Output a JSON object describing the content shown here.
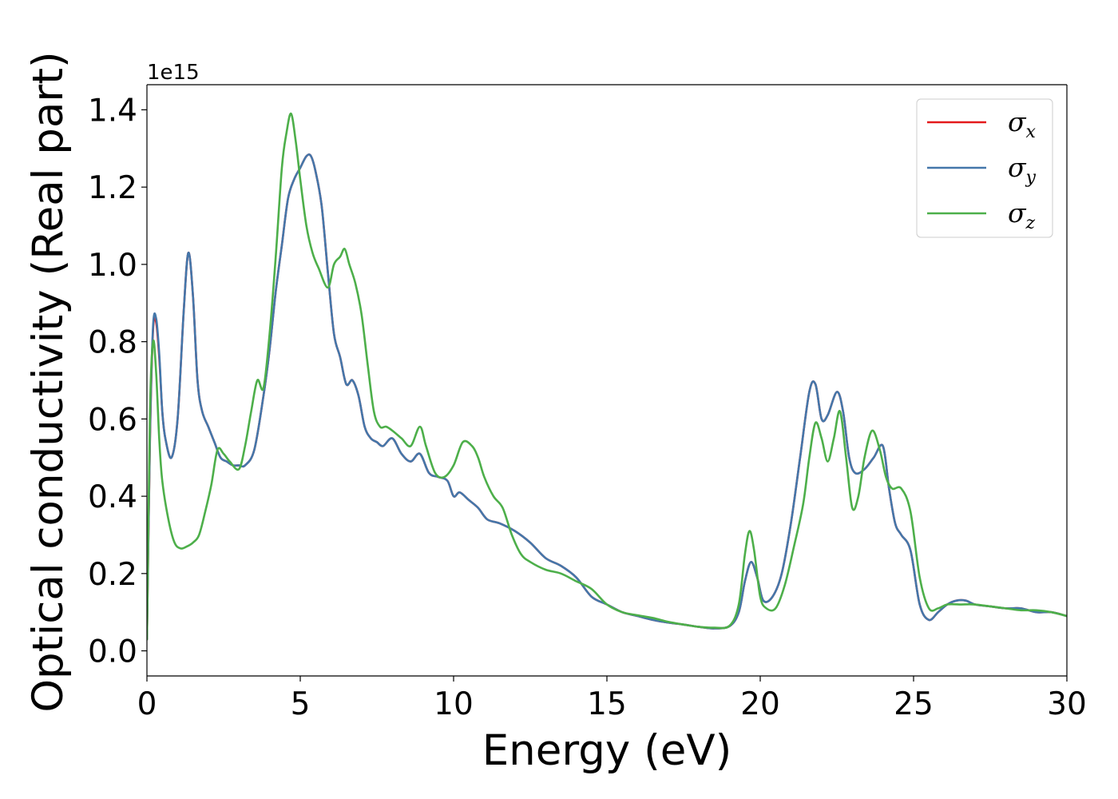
{
  "chart_data": {
    "type": "line",
    "title": "",
    "xlabel": "Energy (eV)",
    "ylabel": "Optical conductivity (Real part)",
    "y_offset_text": "1e15",
    "xlim": [
      0,
      30
    ],
    "ylim": [
      -0.065,
      1.465
    ],
    "xticks": [
      0,
      5,
      10,
      15,
      20,
      25,
      30
    ],
    "xtick_labels": [
      "0",
      "5",
      "10",
      "15",
      "20",
      "25",
      "30"
    ],
    "yticks": [
      0.0,
      0.2,
      0.4,
      0.6,
      0.8,
      1.0,
      1.2,
      1.4
    ],
    "ytick_labels": [
      "0.0",
      "0.2",
      "0.4",
      "0.6",
      "0.8",
      "1.0",
      "1.2",
      "1.4"
    ],
    "grid": false,
    "legend_position": "top-right",
    "series": [
      {
        "name": "σx",
        "symbol": "σ",
        "subscript": "x",
        "color": "#e41a1c",
        "x": [
          0,
          0.1,
          0.2,
          0.3,
          0.4,
          0.5,
          0.6,
          0.8,
          1.0,
          1.2,
          1.35,
          1.5,
          1.65,
          1.8,
          2.0,
          2.2,
          2.4,
          2.6,
          2.8,
          3.0,
          3.2,
          3.5,
          3.8,
          4.0,
          4.2,
          4.4,
          4.6,
          4.8,
          5.0,
          5.2,
          5.35,
          5.5,
          5.7,
          5.9,
          6.1,
          6.3,
          6.5,
          6.7,
          6.9,
          7.1,
          7.3,
          7.5,
          7.7,
          8.0,
          8.3,
          8.6,
          8.9,
          9.2,
          9.5,
          9.8,
          10.0,
          10.2,
          10.5,
          10.8,
          11.1,
          11.5,
          12.0,
          12.5,
          13.0,
          13.5,
          14.0,
          14.5,
          15.0,
          15.5,
          16.0,
          16.5,
          17.0,
          17.5,
          18.0,
          18.5,
          19.0,
          19.3,
          19.5,
          19.7,
          19.9,
          20.1,
          20.4,
          20.7,
          21.0,
          21.3,
          21.6,
          21.8,
          22.0,
          22.2,
          22.5,
          22.7,
          22.9,
          23.1,
          23.4,
          23.7,
          24.0,
          24.2,
          24.4,
          24.6,
          24.9,
          25.2,
          25.5,
          25.8,
          26.1,
          26.4,
          26.7,
          27.0,
          27.5,
          28.0,
          28.5,
          29.0,
          29.5,
          30.0
        ],
        "y": [
          0.03,
          0.55,
          0.83,
          0.85,
          0.76,
          0.62,
          0.55,
          0.5,
          0.6,
          0.88,
          1.03,
          0.92,
          0.7,
          0.62,
          0.58,
          0.54,
          0.5,
          0.49,
          0.48,
          0.48,
          0.48,
          0.52,
          0.66,
          0.78,
          0.93,
          1.05,
          1.17,
          1.22,
          1.25,
          1.28,
          1.28,
          1.24,
          1.15,
          0.98,
          0.82,
          0.76,
          0.69,
          0.7,
          0.66,
          0.58,
          0.55,
          0.54,
          0.53,
          0.55,
          0.51,
          0.49,
          0.51,
          0.46,
          0.45,
          0.44,
          0.4,
          0.41,
          0.39,
          0.37,
          0.34,
          0.33,
          0.31,
          0.28,
          0.24,
          0.22,
          0.19,
          0.14,
          0.12,
          0.1,
          0.09,
          0.08,
          0.073,
          0.068,
          0.062,
          0.058,
          0.064,
          0.1,
          0.18,
          0.23,
          0.19,
          0.13,
          0.14,
          0.2,
          0.33,
          0.5,
          0.67,
          0.69,
          0.6,
          0.61,
          0.67,
          0.62,
          0.5,
          0.46,
          0.47,
          0.5,
          0.53,
          0.42,
          0.33,
          0.3,
          0.26,
          0.12,
          0.08,
          0.1,
          0.12,
          0.13,
          0.13,
          0.12,
          0.115,
          0.11,
          0.11,
          0.1,
          0.1,
          0.09
        ]
      },
      {
        "name": "σy",
        "symbol": "σ",
        "subscript": "y",
        "color": "#4477aa",
        "x": [
          0,
          0.1,
          0.2,
          0.3,
          0.4,
          0.5,
          0.6,
          0.8,
          1.0,
          1.2,
          1.35,
          1.5,
          1.65,
          1.8,
          2.0,
          2.2,
          2.4,
          2.6,
          2.8,
          3.0,
          3.2,
          3.5,
          3.8,
          4.0,
          4.2,
          4.4,
          4.6,
          4.8,
          5.0,
          5.2,
          5.35,
          5.5,
          5.7,
          5.9,
          6.1,
          6.3,
          6.5,
          6.7,
          6.9,
          7.1,
          7.3,
          7.5,
          7.7,
          8.0,
          8.3,
          8.6,
          8.9,
          9.2,
          9.5,
          9.8,
          10.0,
          10.2,
          10.5,
          10.8,
          11.1,
          11.5,
          12.0,
          12.5,
          13.0,
          13.5,
          14.0,
          14.5,
          15.0,
          15.5,
          16.0,
          16.5,
          17.0,
          17.5,
          18.0,
          18.5,
          19.0,
          19.3,
          19.5,
          19.7,
          19.9,
          20.1,
          20.4,
          20.7,
          21.0,
          21.3,
          21.6,
          21.8,
          22.0,
          22.2,
          22.5,
          22.7,
          22.9,
          23.1,
          23.4,
          23.7,
          24.0,
          24.2,
          24.4,
          24.6,
          24.9,
          25.2,
          25.5,
          25.8,
          26.1,
          26.4,
          26.7,
          27.0,
          27.5,
          28.0,
          28.5,
          29.0,
          29.5,
          30.0
        ],
        "y": [
          0.03,
          0.56,
          0.84,
          0.86,
          0.77,
          0.62,
          0.55,
          0.5,
          0.6,
          0.88,
          1.03,
          0.92,
          0.7,
          0.62,
          0.58,
          0.54,
          0.5,
          0.49,
          0.48,
          0.48,
          0.48,
          0.52,
          0.66,
          0.78,
          0.93,
          1.05,
          1.17,
          1.22,
          1.25,
          1.28,
          1.28,
          1.24,
          1.15,
          0.98,
          0.82,
          0.76,
          0.69,
          0.7,
          0.66,
          0.58,
          0.55,
          0.54,
          0.53,
          0.55,
          0.51,
          0.49,
          0.51,
          0.46,
          0.45,
          0.44,
          0.4,
          0.41,
          0.39,
          0.37,
          0.34,
          0.33,
          0.31,
          0.28,
          0.24,
          0.22,
          0.19,
          0.14,
          0.12,
          0.1,
          0.09,
          0.08,
          0.073,
          0.068,
          0.062,
          0.058,
          0.064,
          0.1,
          0.18,
          0.23,
          0.19,
          0.13,
          0.14,
          0.2,
          0.33,
          0.5,
          0.67,
          0.69,
          0.6,
          0.61,
          0.67,
          0.62,
          0.5,
          0.46,
          0.47,
          0.5,
          0.53,
          0.42,
          0.33,
          0.3,
          0.26,
          0.12,
          0.08,
          0.1,
          0.12,
          0.13,
          0.13,
          0.12,
          0.115,
          0.11,
          0.11,
          0.1,
          0.1,
          0.09
        ]
      },
      {
        "name": "σz",
        "symbol": "σ",
        "subscript": "z",
        "color": "#4daf4a",
        "x": [
          0,
          0.1,
          0.2,
          0.3,
          0.4,
          0.5,
          0.7,
          0.9,
          1.1,
          1.3,
          1.5,
          1.7,
          1.9,
          2.1,
          2.3,
          2.5,
          2.7,
          3.0,
          3.2,
          3.4,
          3.6,
          3.8,
          4.0,
          4.2,
          4.4,
          4.55,
          4.7,
          4.85,
          5.0,
          5.2,
          5.4,
          5.6,
          5.9,
          6.1,
          6.3,
          6.45,
          6.6,
          6.8,
          7.0,
          7.2,
          7.4,
          7.6,
          7.8,
          8.0,
          8.3,
          8.6,
          8.9,
          9.1,
          9.4,
          9.7,
          10.0,
          10.3,
          10.6,
          10.8,
          11.0,
          11.3,
          11.6,
          11.9,
          12.2,
          12.5,
          13.0,
          13.5,
          14.0,
          14.5,
          15.0,
          15.5,
          16.0,
          16.5,
          17.0,
          17.5,
          18.0,
          18.5,
          19.0,
          19.3,
          19.5,
          19.65,
          19.8,
          20.0,
          20.2,
          20.5,
          20.8,
          21.1,
          21.4,
          21.6,
          21.8,
          22.0,
          22.2,
          22.4,
          22.6,
          22.8,
          23.0,
          23.2,
          23.4,
          23.65,
          23.9,
          24.1,
          24.3,
          24.6,
          24.9,
          25.2,
          25.5,
          25.8,
          26.1,
          26.5,
          27.0,
          27.5,
          28.0,
          28.5,
          29.0,
          29.5,
          30.0
        ],
        "y": [
          0.03,
          0.62,
          0.8,
          0.72,
          0.55,
          0.44,
          0.34,
          0.28,
          0.265,
          0.27,
          0.28,
          0.3,
          0.36,
          0.43,
          0.52,
          0.51,
          0.49,
          0.47,
          0.53,
          0.62,
          0.7,
          0.68,
          0.82,
          1.02,
          1.25,
          1.34,
          1.39,
          1.32,
          1.22,
          1.1,
          1.03,
          0.99,
          0.94,
          1.0,
          1.02,
          1.04,
          1.0,
          0.95,
          0.87,
          0.74,
          0.62,
          0.58,
          0.58,
          0.57,
          0.55,
          0.53,
          0.58,
          0.53,
          0.46,
          0.45,
          0.48,
          0.54,
          0.53,
          0.5,
          0.45,
          0.4,
          0.37,
          0.3,
          0.25,
          0.23,
          0.21,
          0.2,
          0.18,
          0.16,
          0.12,
          0.1,
          0.092,
          0.085,
          0.075,
          0.068,
          0.062,
          0.06,
          0.065,
          0.12,
          0.25,
          0.31,
          0.26,
          0.14,
          0.11,
          0.11,
          0.17,
          0.27,
          0.38,
          0.5,
          0.59,
          0.55,
          0.49,
          0.55,
          0.62,
          0.5,
          0.37,
          0.4,
          0.5,
          0.57,
          0.52,
          0.45,
          0.42,
          0.42,
          0.36,
          0.19,
          0.11,
          0.11,
          0.12,
          0.12,
          0.12,
          0.115,
          0.11,
          0.105,
          0.105,
          0.1,
          0.09
        ]
      }
    ]
  }
}
